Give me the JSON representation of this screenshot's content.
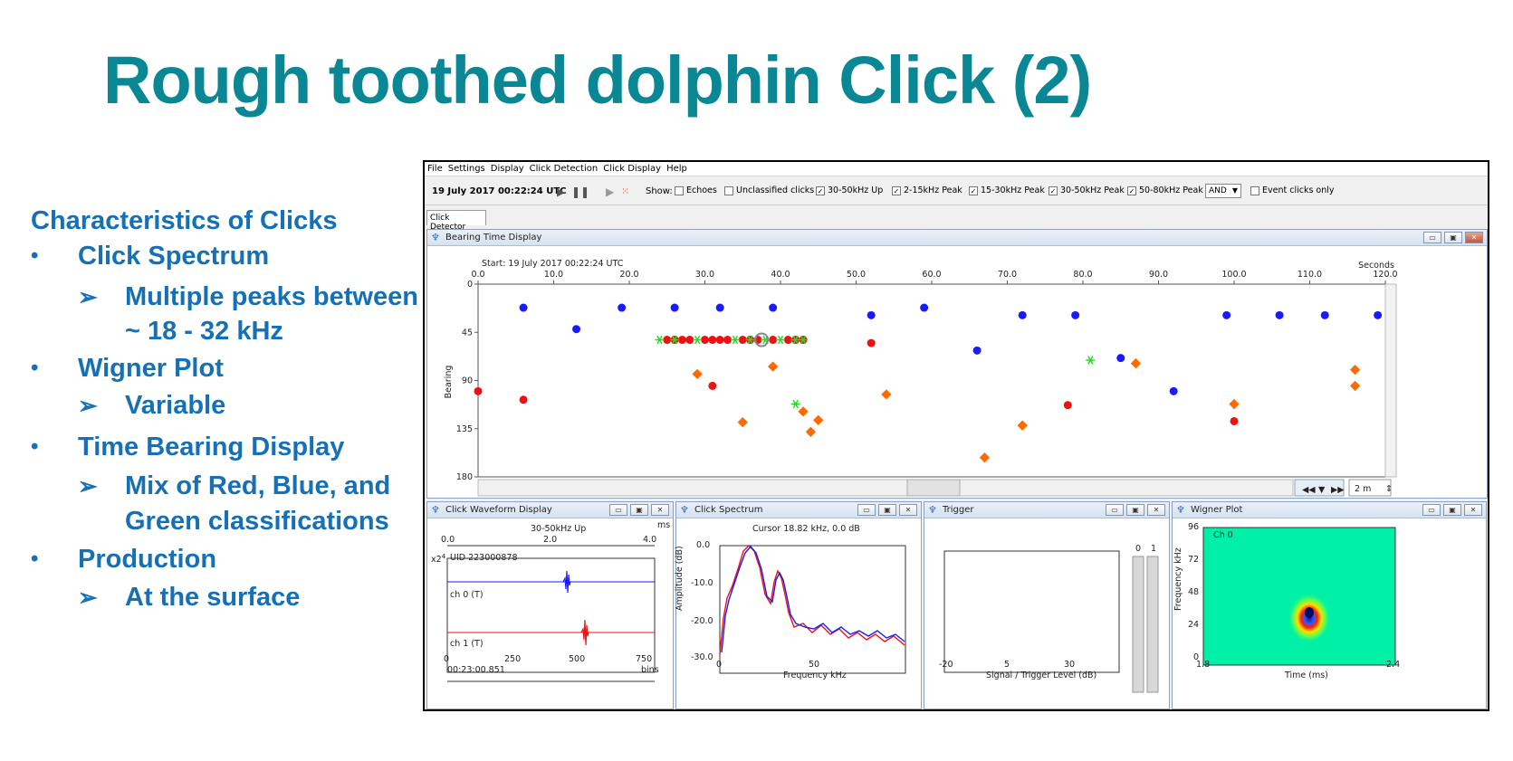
{
  "slide": {
    "title": "Rough toothed dolphin Click (2)",
    "heading": "Characteristics of Clicks",
    "bullet_marker": "•",
    "sub_marker": "➢",
    "bullets": [
      {
        "label": "Click Spectrum",
        "subs": [
          "Multiple peaks between",
          "~ 18 - 32 kHz"
        ]
      },
      {
        "label": "Wigner Plot",
        "subs": [
          "Variable"
        ]
      },
      {
        "label": "Time Bearing Display",
        "subs": [
          "Mix of Red, Blue, and",
          "Green classifications"
        ]
      },
      {
        "label": "Production",
        "subs": [
          "At the surface"
        ]
      }
    ]
  },
  "app": {
    "menu": [
      "File",
      "Settings",
      "Display",
      "Click Detection",
      "Click Display",
      "Help"
    ],
    "toolbar": {
      "datetime": "19 July 2017 00:22:24 UTC",
      "show_label": "Show:",
      "checkboxes": [
        {
          "label": "Echoes",
          "checked": false
        },
        {
          "label": "Unclassified clicks",
          "checked": false
        },
        {
          "label": "30-50kHz Up",
          "checked": true
        },
        {
          "label": "2-15kHz Peak",
          "checked": true
        },
        {
          "label": "15-30kHz Peak",
          "checked": true
        },
        {
          "label": "30-50kHz Peak",
          "checked": true
        },
        {
          "label": "50-80kHz Peak",
          "checked": true
        }
      ],
      "logic_select": "AND",
      "event_only": {
        "label": "Event clicks only",
        "checked": false
      }
    },
    "tab": "Click Detector",
    "bearing": {
      "title": "Bearing Time Display",
      "start": "Start: 19 July 2017 00:22:24 UTC",
      "seconds_label": "Seconds",
      "ylabel": "Bearing",
      "x_ticks": [
        "0.0",
        "10.0",
        "20.0",
        "30.0",
        "40.0",
        "50.0",
        "60.0",
        "70.0",
        "80.0",
        "90.0",
        "100.0",
        "110.0",
        "120.0"
      ],
      "y_ticks": [
        "0",
        "45",
        "90",
        "135",
        "180"
      ],
      "span": "2 m"
    },
    "waveform": {
      "title": "Click Waveform Display",
      "class": "30-50kHz Up",
      "ms_label": "ms",
      "top_ticks": [
        "0.0",
        "2.0",
        "4.0"
      ],
      "x2": "x2",
      "uid": "UID 223000878",
      "ch0": "ch 0 (T)",
      "ch1": "ch 1 (T)",
      "bottom_ticks": [
        "0",
        "250",
        "500",
        "750"
      ],
      "bins": "bins",
      "time": "00:23:00.851"
    },
    "spectrum": {
      "title": "Click Spectrum",
      "cursor": "Cursor 18.82 kHz, 0.0 dB",
      "y_ticks": [
        "0.0",
        "-10.0",
        "-20.0",
        "-30.0"
      ],
      "ylabel": "Amplitude (dB)",
      "x_ticks": [
        "0",
        "50"
      ],
      "xlabel": "Frequency kHz"
    },
    "trigger": {
      "title": "Trigger",
      "x_ticks": [
        "-20",
        "5",
        "30"
      ],
      "xlabel": "Signal / Trigger Level (dB)",
      "ch_labels": [
        "0",
        "1"
      ]
    },
    "wigner": {
      "title": "Wigner Plot",
      "ch": "Ch 0",
      "y_ticks": [
        "96",
        "72",
        "48",
        "24",
        "0"
      ],
      "ylabel": "Frequency kHz",
      "x_ticks": [
        "1.8",
        "2.4"
      ],
      "xlabel": "Time (ms)"
    }
  },
  "colors": {
    "title": "#0a8794",
    "body": "#1670b6",
    "blue_class": "#1a1aff",
    "red_class": "#ee1111",
    "green_class": "#22dd22",
    "orange_class": "#ff6a00",
    "wigner_bg": "#00f0a8"
  },
  "chart_data": {
    "type": "scatter",
    "xlim": [
      0,
      120
    ],
    "ylim": [
      0,
      180
    ],
    "series": [
      {
        "color": "blue",
        "points": [
          [
            6,
            22
          ],
          [
            13,
            42
          ],
          [
            19,
            22
          ],
          [
            26,
            22
          ],
          [
            32,
            22
          ],
          [
            39,
            22
          ],
          [
            52,
            29
          ],
          [
            59,
            22
          ],
          [
            66,
            62
          ],
          [
            72,
            29
          ],
          [
            79,
            29
          ],
          [
            85,
            69
          ],
          [
            92,
            100
          ],
          [
            99,
            29
          ],
          [
            106,
            29
          ],
          [
            112,
            29
          ],
          [
            119,
            29
          ]
        ]
      },
      {
        "color": "red",
        "points": [
          [
            0,
            100
          ],
          [
            6,
            108
          ],
          [
            25,
            52
          ],
          [
            26,
            52
          ],
          [
            27,
            52
          ],
          [
            28,
            52
          ],
          [
            30,
            52
          ],
          [
            31,
            52
          ],
          [
            32,
            52
          ],
          [
            33,
            52
          ],
          [
            35,
            52
          ],
          [
            36,
            52
          ],
          [
            37,
            52
          ],
          [
            39,
            52
          ],
          [
            41,
            52
          ],
          [
            42,
            52
          ],
          [
            43,
            52
          ],
          [
            52,
            55
          ],
          [
            31,
            95
          ],
          [
            78,
            113
          ],
          [
            100,
            128
          ]
        ]
      },
      {
        "color": "green",
        "points": [
          [
            24,
            52
          ],
          [
            26,
            52
          ],
          [
            29,
            52
          ],
          [
            34,
            52
          ],
          [
            36,
            52
          ],
          [
            38,
            52
          ],
          [
            40,
            52
          ],
          [
            42,
            52
          ],
          [
            43,
            52
          ],
          [
            81,
            71
          ],
          [
            42,
            112
          ]
        ]
      },
      {
        "color": "orange",
        "points": [
          [
            29,
            84
          ],
          [
            39,
            77
          ],
          [
            35,
            129
          ],
          [
            43,
            119
          ],
          [
            45,
            127
          ],
          [
            44,
            138
          ],
          [
            54,
            103
          ],
          [
            67,
            162
          ],
          [
            72,
            132
          ],
          [
            87,
            74
          ],
          [
            100,
            112
          ],
          [
            116,
            95
          ],
          [
            116,
            80
          ]
        ]
      }
    ]
  }
}
